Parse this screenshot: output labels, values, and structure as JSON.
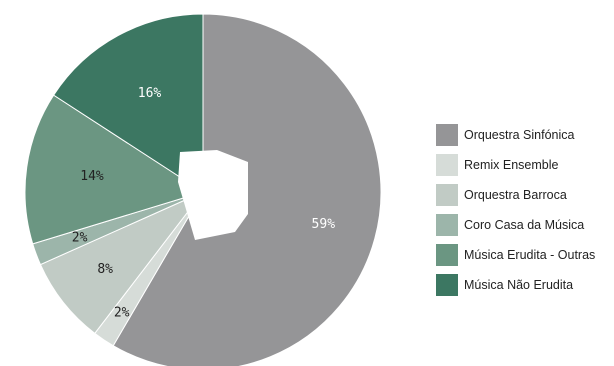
{
  "chart_data": {
    "type": "pie",
    "title": "",
    "categories": [
      "Orquestra Sinfónica",
      "Remix Ensemble",
      "Orquestra Barroca",
      "Coro Casa da Música",
      "Música Erudita - Outras",
      "Música Não Erudita"
    ],
    "values": [
      59,
      2,
      8,
      2,
      14,
      16
    ],
    "labels": [
      "59%",
      "2%",
      "8%",
      "2%",
      "14%",
      "16%"
    ],
    "colors": [
      "#959597",
      "#d6dcd8",
      "#c1cbc5",
      "#9cb5aa",
      "#6b9682",
      "#3c7762"
    ],
    "label_colors": [
      "#ffffff",
      "#222222",
      "#222222",
      "#222222",
      "#222222",
      "#ffffff"
    ],
    "legend_position": "right"
  }
}
